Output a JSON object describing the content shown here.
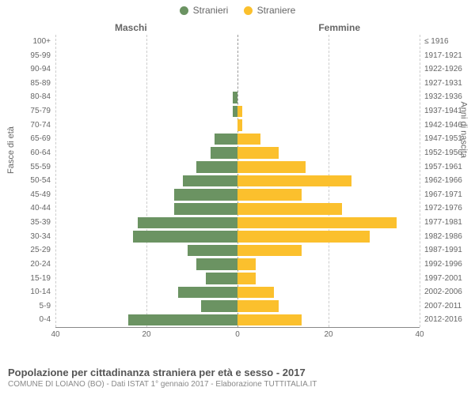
{
  "legend": {
    "male": {
      "label": "Stranieri",
      "color": "#6b9362"
    },
    "female": {
      "label": "Straniere",
      "color": "#fbc02d"
    }
  },
  "headers": {
    "left": "Maschi",
    "right": "Femmine"
  },
  "axis": {
    "left_title": "Fasce di età",
    "right_title": "Anni di nascita",
    "xmax": 40,
    "ticks": [
      -40,
      -20,
      0,
      20,
      40
    ],
    "tick_labels": [
      "40",
      "20",
      "0",
      "20",
      "40"
    ]
  },
  "colors": {
    "male_bar": "#6b9362",
    "female_bar": "#fbc02d",
    "background": "#ffffff",
    "grid": "#cccccc",
    "text": "#666666"
  },
  "rows": [
    {
      "age": "100+",
      "birth": "≤ 1916",
      "m": 0,
      "f": 0
    },
    {
      "age": "95-99",
      "birth": "1917-1921",
      "m": 0,
      "f": 0
    },
    {
      "age": "90-94",
      "birth": "1922-1926",
      "m": 0,
      "f": 0
    },
    {
      "age": "85-89",
      "birth": "1927-1931",
      "m": 0,
      "f": 0
    },
    {
      "age": "80-84",
      "birth": "1932-1936",
      "m": 1,
      "f": 0
    },
    {
      "age": "75-79",
      "birth": "1937-1941",
      "m": 1,
      "f": 1
    },
    {
      "age": "70-74",
      "birth": "1942-1946",
      "m": 0,
      "f": 1
    },
    {
      "age": "65-69",
      "birth": "1947-1951",
      "m": 5,
      "f": 5
    },
    {
      "age": "60-64",
      "birth": "1952-1956",
      "m": 6,
      "f": 9
    },
    {
      "age": "55-59",
      "birth": "1957-1961",
      "m": 9,
      "f": 15
    },
    {
      "age": "50-54",
      "birth": "1962-1966",
      "m": 12,
      "f": 25
    },
    {
      "age": "45-49",
      "birth": "1967-1971",
      "m": 14,
      "f": 14
    },
    {
      "age": "40-44",
      "birth": "1972-1976",
      "m": 14,
      "f": 23
    },
    {
      "age": "35-39",
      "birth": "1977-1981",
      "m": 22,
      "f": 35
    },
    {
      "age": "30-34",
      "birth": "1982-1986",
      "m": 23,
      "f": 29
    },
    {
      "age": "25-29",
      "birth": "1987-1991",
      "m": 11,
      "f": 14
    },
    {
      "age": "20-24",
      "birth": "1992-1996",
      "m": 9,
      "f": 4
    },
    {
      "age": "15-19",
      "birth": "1997-2001",
      "m": 7,
      "f": 4
    },
    {
      "age": "10-14",
      "birth": "2002-2006",
      "m": 13,
      "f": 8
    },
    {
      "age": "5-9",
      "birth": "2007-2011",
      "m": 8,
      "f": 9
    },
    {
      "age": "0-4",
      "birth": "2012-2016",
      "m": 24,
      "f": 14
    }
  ],
  "footer": {
    "title": "Popolazione per cittadinanza straniera per età e sesso - 2017",
    "subtitle": "COMUNE DI LOIANO (BO) - Dati ISTAT 1° gennaio 2017 - Elaborazione TUTTITALIA.IT"
  }
}
